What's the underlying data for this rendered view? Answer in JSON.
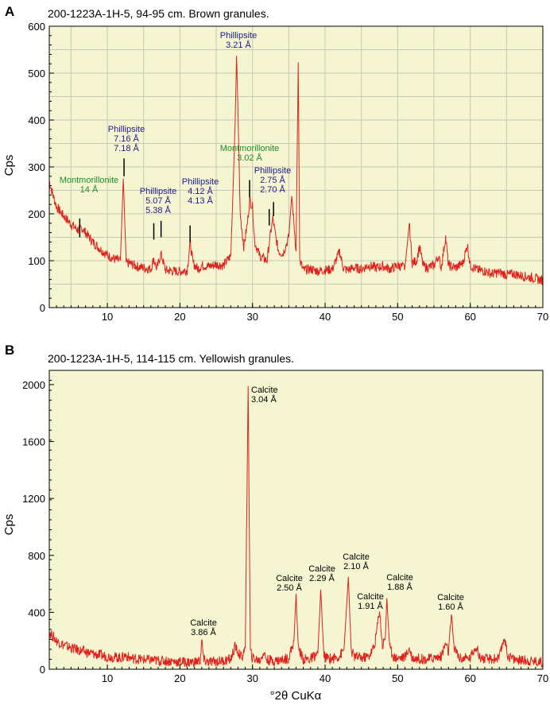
{
  "chart_data": [
    {
      "type": "line",
      "panel_label": "A",
      "title": "200-1223A-1H-5, 94-95 cm. Brown granules.",
      "xlabel": "",
      "ylabel": "Cps",
      "xlim": [
        2,
        70
      ],
      "ylim": [
        0,
        600
      ],
      "x_ticks": [
        "10",
        "20",
        "30",
        "40",
        "50",
        "60",
        "70"
      ],
      "y_ticks": [
        "0",
        "100",
        "200",
        "300",
        "400",
        "500",
        "600"
      ],
      "grid": true,
      "background_color": "#f5f5d2",
      "line_color": "#e0201a",
      "series": [
        {
          "points": [
            [
              2,
              270
            ],
            [
              2.5,
              240
            ],
            [
              3,
              215
            ],
            [
              4,
              195
            ],
            [
              5,
              178
            ],
            [
              6,
              165
            ],
            [
              6.5,
              170
            ],
            [
              7,
              160
            ],
            [
              8,
              140
            ],
            [
              9,
              125
            ],
            [
              10,
              112
            ],
            [
              11,
              103
            ],
            [
              11.8,
              100
            ],
            [
              12.2,
              275
            ],
            [
              12.6,
              95
            ],
            [
              13,
              95
            ],
            [
              14,
              88
            ],
            [
              15,
              85
            ],
            [
              16,
              82
            ],
            [
              16.4,
              105
            ],
            [
              16.8,
              82
            ],
            [
              17.4,
              115
            ],
            [
              18,
              80
            ],
            [
              19,
              78
            ],
            [
              20,
              77
            ],
            [
              21,
              80
            ],
            [
              21.4,
              140
            ],
            [
              21.8,
              95
            ],
            [
              22.5,
              82
            ],
            [
              23,
              90
            ],
            [
              24,
              88
            ],
            [
              25,
              92
            ],
            [
              26,
              90
            ],
            [
              27,
              110
            ],
            [
              27.3,
              240
            ],
            [
              27.6,
              390
            ],
            [
              27.8,
              537
            ],
            [
              28,
              420
            ],
            [
              28.3,
              200
            ],
            [
              28.8,
              130
            ],
            [
              29.3,
              180
            ],
            [
              29.6,
              230
            ],
            [
              30,
              215
            ],
            [
              30.3,
              140
            ],
            [
              31,
              110
            ],
            [
              32,
              100
            ],
            [
              32.5,
              160
            ],
            [
              32.8,
              190
            ],
            [
              33.2,
              150
            ],
            [
              33.6,
              120
            ],
            [
              34.2,
              115
            ],
            [
              35,
              150
            ],
            [
              35.4,
              240
            ],
            [
              35.7,
              180
            ],
            [
              36,
              120
            ],
            [
              36.3,
              523
            ],
            [
              36.5,
              100
            ],
            [
              37,
              80
            ],
            [
              38,
              82
            ],
            [
              39,
              78
            ],
            [
              40,
              80
            ],
            [
              41,
              82
            ],
            [
              42,
              120
            ],
            [
              42.5,
              85
            ],
            [
              43,
              80
            ],
            [
              44,
              85
            ],
            [
              45,
              82
            ],
            [
              46,
              90
            ],
            [
              47,
              85
            ],
            [
              48,
              88
            ],
            [
              49,
              82
            ],
            [
              50,
              90
            ],
            [
              51,
              85
            ],
            [
              51.6,
              180
            ],
            [
              52,
              95
            ],
            [
              52.6,
              100
            ],
            [
              53,
              130
            ],
            [
              53.5,
              90
            ],
            [
              54,
              85
            ],
            [
              55,
              90
            ],
            [
              55.6,
              110
            ],
            [
              56,
              85
            ],
            [
              56.6,
              150
            ],
            [
              57,
              90
            ],
            [
              58,
              85
            ],
            [
              59,
              95
            ],
            [
              59.6,
              135
            ],
            [
              60,
              90
            ],
            [
              61,
              80
            ],
            [
              62,
              78
            ],
            [
              63,
              72
            ],
            [
              64,
              75
            ],
            [
              65,
              70
            ],
            [
              66,
              72
            ],
            [
              67,
              68
            ],
            [
              68,
              65
            ],
            [
              69,
              62
            ],
            [
              70,
              58
            ]
          ]
        }
      ],
      "annotations": [
        {
          "lines": [
            "Montmorillonite",
            "14 Å"
          ],
          "color": "#1e8c2a",
          "x": 6.2,
          "y_top": 190,
          "y_bottom": 150
        },
        {
          "lines": [
            "Phillipsite",
            "7.16 Å",
            "7.18 Å"
          ],
          "color": "#1a1a8c",
          "x": 12.3,
          "y_top": 318,
          "y_bottom": 280
        },
        {
          "lines": [
            "Phillipsite",
            "5.07 Å",
            "5.38 Å"
          ],
          "color": "#1a1a8c",
          "x": 16.4,
          "y_top": 180,
          "y_bottom": 145
        },
        {
          "lines": [],
          "color": "#1a1a8c",
          "x": 17.4,
          "y_top": 185,
          "y_bottom": 150
        },
        {
          "lines": [
            "Phillipsite",
            "4.12 Å",
            "4.13 Å"
          ],
          "color": "#1a1a8c",
          "x": 21.4,
          "y_top": 175,
          "y_bottom": 140
        },
        {
          "lines": [
            "Phillipsite",
            "3.21 Å"
          ],
          "color": "#1a1a8c",
          "x": 27.8,
          "y_top": 0,
          "y_bottom": 0
        },
        {
          "lines": [
            "Montmorillonite",
            "3.02 Å"
          ],
          "color": "#1e8c2a",
          "x": 29.6,
          "y_top": 272,
          "y_bottom": 235
        },
        {
          "lines": [
            "Phillipsite",
            "2.75 Å",
            "2.70 Å"
          ],
          "color": "#1a1a8c",
          "x": 32.3,
          "y_top": 210,
          "y_bottom": 175
        },
        {
          "lines": [],
          "color": "#1a1a8c",
          "x": 32.9,
          "y_top": 225,
          "y_bottom": 195
        }
      ]
    },
    {
      "type": "line",
      "panel_label": "B",
      "title": "200-1223A-1H-5, 114-115 cm. Yellowish granules.",
      "xlabel": "°2θ CuKα",
      "ylabel": "Cps",
      "xlim": [
        2,
        70
      ],
      "ylim": [
        0,
        2100
      ],
      "x_ticks": [
        "10",
        "20",
        "30",
        "40",
        "50",
        "60",
        "70"
      ],
      "y_ticks": [
        "0",
        "400",
        "800",
        "1200",
        "1600",
        "2000"
      ],
      "grid": false,
      "background_color": "#f5f5d2",
      "line_color": "#e0201a",
      "series": [
        {
          "points": [
            [
              2,
              260
            ],
            [
              2.5,
              230
            ],
            [
              3,
              200
            ],
            [
              4,
              170
            ],
            [
              5,
              150
            ],
            [
              6,
              135
            ],
            [
              7,
              120
            ],
            [
              8,
              108
            ],
            [
              9,
              98
            ],
            [
              10,
              90
            ],
            [
              11,
              85
            ],
            [
              12,
              80
            ],
            [
              12.5,
              100
            ],
            [
              13,
              80
            ],
            [
              14,
              72
            ],
            [
              15,
              68
            ],
            [
              16,
              65
            ],
            [
              17,
              60
            ],
            [
              18,
              58
            ],
            [
              19,
              55
            ],
            [
              20,
              52
            ],
            [
              21,
              50
            ],
            [
              22,
              50
            ],
            [
              22.8,
              60
            ],
            [
              23,
              200
            ],
            [
              23.3,
              60
            ],
            [
              24,
              50
            ],
            [
              25,
              55
            ],
            [
              26,
              60
            ],
            [
              27,
              70
            ],
            [
              27.6,
              160
            ],
            [
              28,
              120
            ],
            [
              28.5,
              80
            ],
            [
              29,
              150
            ],
            [
              29.4,
              1990
            ],
            [
              29.7,
              120
            ],
            [
              30,
              80
            ],
            [
              31,
              60
            ],
            [
              31.5,
              120
            ],
            [
              32,
              65
            ],
            [
              33,
              60
            ],
            [
              34,
              65
            ],
            [
              35,
              80
            ],
            [
              35.7,
              200
            ],
            [
              36,
              530
            ],
            [
              36.3,
              150
            ],
            [
              37,
              70
            ],
            [
              38,
              70
            ],
            [
              39,
              110
            ],
            [
              39.4,
              560
            ],
            [
              39.8,
              120
            ],
            [
              40,
              80
            ],
            [
              41,
              75
            ],
            [
              42,
              90
            ],
            [
              42.6,
              140
            ],
            [
              43.2,
              650
            ],
            [
              43.6,
              130
            ],
            [
              44,
              90
            ],
            [
              45,
              80
            ],
            [
              46,
              90
            ],
            [
              46.8,
              160
            ],
            [
              47.5,
              420
            ],
            [
              47.9,
              160
            ],
            [
              48.3,
              230
            ],
            [
              48.5,
              500
            ],
            [
              48.9,
              150
            ],
            [
              49.5,
              85
            ],
            [
              50,
              80
            ],
            [
              51,
              85
            ],
            [
              51.6,
              150
            ],
            [
              52,
              80
            ],
            [
              53,
              75
            ],
            [
              54,
              70
            ],
            [
              55,
              80
            ],
            [
              56,
              90
            ],
            [
              56.6,
              180
            ],
            [
              57,
              120
            ],
            [
              57.4,
              370
            ],
            [
              57.8,
              150
            ],
            [
              58.5,
              80
            ],
            [
              59,
              75
            ],
            [
              60,
              80
            ],
            [
              60.8,
              170
            ],
            [
              61.2,
              90
            ],
            [
              62,
              70
            ],
            [
              63,
              70
            ],
            [
              64,
              80
            ],
            [
              64.7,
              230
            ],
            [
              65.1,
              100
            ],
            [
              66,
              70
            ],
            [
              67,
              65
            ],
            [
              68,
              60
            ],
            [
              69,
              55
            ],
            [
              70,
              50
            ]
          ]
        }
      ],
      "annotations": [
        {
          "lines": [
            "Calcite",
            "3.86 Å"
          ],
          "color": "#000000",
          "x": 23.1
        },
        {
          "lines": [
            "Calcite",
            "3.04 Å"
          ],
          "color": "#000000",
          "x": 29.4
        },
        {
          "lines": [
            "Calcite",
            "2.50 Å"
          ],
          "color": "#000000",
          "x": 36.0
        },
        {
          "lines": [
            "Calcite",
            "2.29 Å"
          ],
          "color": "#000000",
          "x": 39.4
        },
        {
          "lines": [
            "Calcite",
            "2.10 Å"
          ],
          "color": "#000000",
          "x": 43.2
        },
        {
          "lines": [
            "Calcite",
            "1.91 Å"
          ],
          "color": "#000000",
          "x": 47.5
        },
        {
          "lines": [
            "Calcite",
            "1.88 Å"
          ],
          "color": "#000000",
          "x": 48.5
        },
        {
          "lines": [
            "Calcite",
            "1.60 Å"
          ],
          "color": "#000000",
          "x": 57.4
        }
      ]
    }
  ]
}
